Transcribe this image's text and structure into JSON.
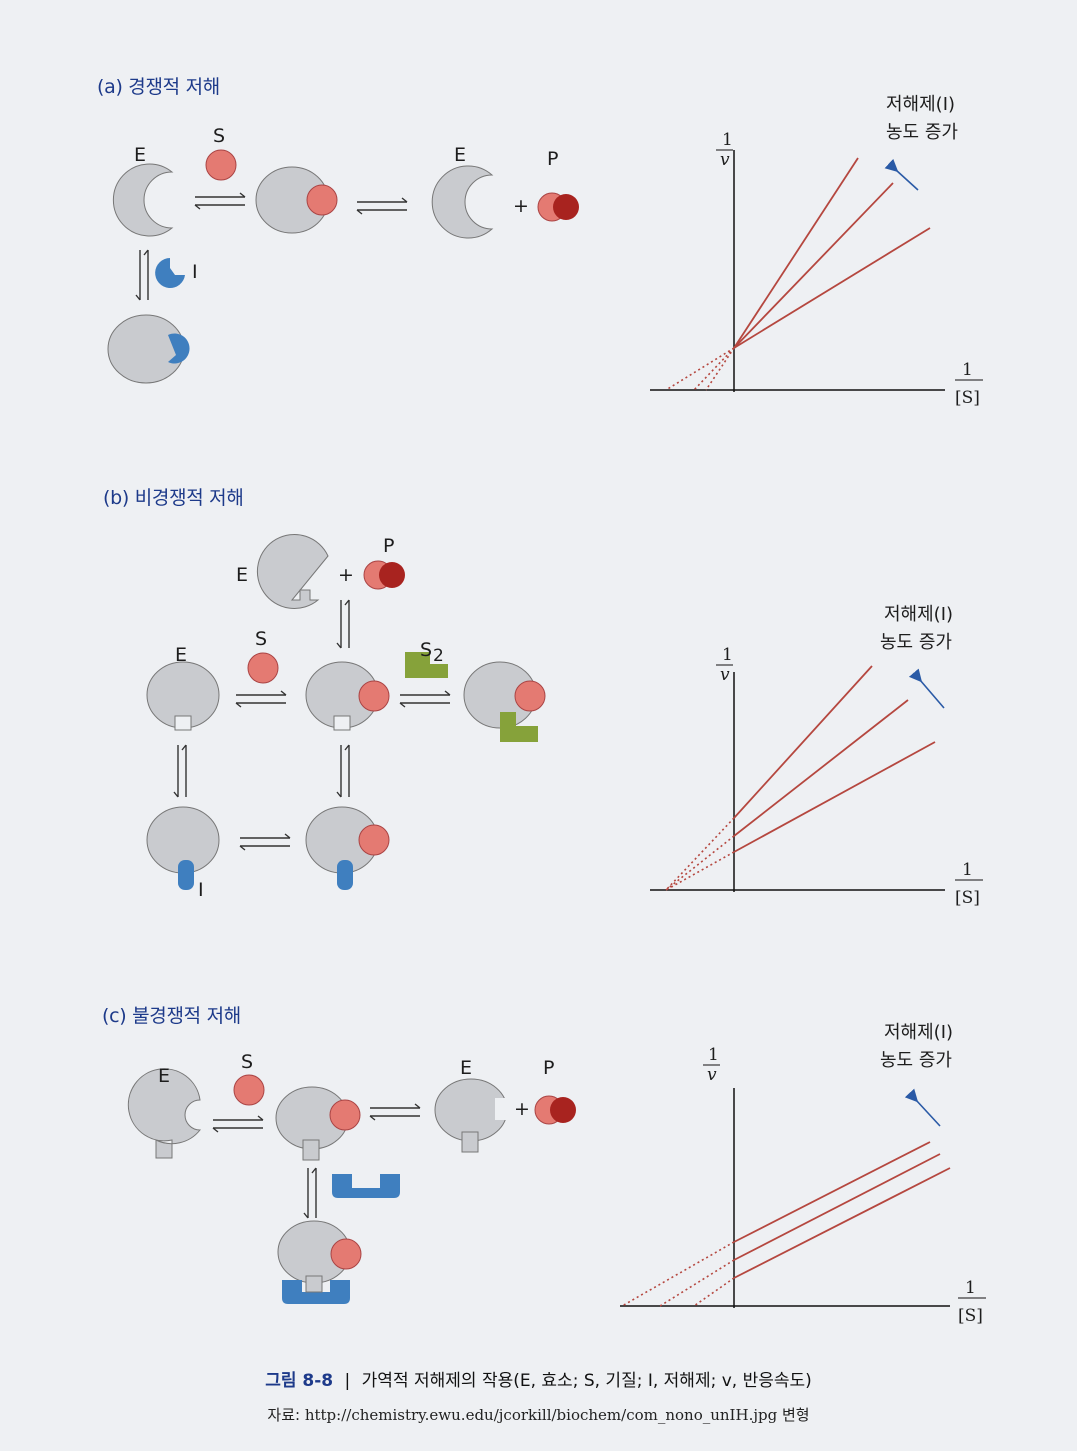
{
  "sections": {
    "a": {
      "title": "(a) 경쟁적 저해"
    },
    "b": {
      "title": "(b) 비경쟁적 저해"
    },
    "c": {
      "title": "(c) 불경쟁적 저해"
    }
  },
  "labels": {
    "E": "E",
    "S": "S",
    "P": "P",
    "I": "I",
    "S2": "S",
    "S2_sub": "2",
    "plus": "+"
  },
  "graph": {
    "annotation_line1": "저해제(I)",
    "annotation_line2": "농도 증가",
    "y_num": "1",
    "y_den": "v",
    "x_num": "1",
    "x_den": "[S]"
  },
  "chart_data": [
    {
      "type": "line",
      "title": "(a) 경쟁적 저해",
      "xlabel": "1/[S]",
      "ylabel": "1/v",
      "description_pattern": "lines share a common y-intercept, slopes increase with inhibitor",
      "annotation": "저해제(I) 농도 증가"
    },
    {
      "type": "line",
      "title": "(b) 비경쟁적 저해",
      "xlabel": "1/[S]",
      "ylabel": "1/v",
      "description_pattern": "lines share a common x-intercept, slopes increase with inhibitor",
      "annotation": "저해제(I) 농도 증가"
    },
    {
      "type": "line",
      "title": "(c) 불경쟁적 저해",
      "xlabel": "1/[S]",
      "ylabel": "1/v",
      "description_pattern": "parallel lines shifted up with inhibitor",
      "annotation": "저해제(I) 농도 증가"
    }
  ],
  "caption": {
    "label": "그림 8-8",
    "separator": "|",
    "text": "가역적 저해제의 작용(E, 효소; S, 기질; I, 저해제; v, 반응속도)"
  },
  "source": {
    "prefix": "자료:",
    "url": "http://chemistry.ewu.edu/jcorkill/biochem/com_nono_unIH.jpg",
    "suffix": "변형"
  },
  "colors": {
    "enzyme": "#c9cbcf",
    "substrate": "#e47a72",
    "product_dark": "#a8231f",
    "inhibitor": "#3f7fbf",
    "s2": "#86a23a",
    "line": "#b5473f",
    "title": "#1d3a8a"
  }
}
